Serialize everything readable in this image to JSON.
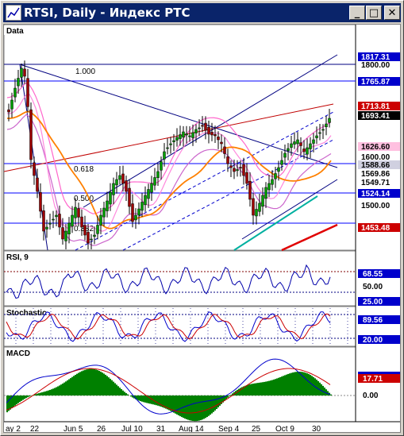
{
  "window": {
    "title": "RTSI, Daily - Индекс РТС",
    "minimize_glyph": "_",
    "maximize_glyph": "□",
    "close_glyph": "✕",
    "icon": "chart-window-icon"
  },
  "panes": {
    "main": {
      "label": "Data",
      "fib_labels": [
        "1.000",
        "0.618",
        "0.500",
        "0.382"
      ],
      "price_ticks": [
        "1817.31",
        "1800.00",
        "1765.87",
        "1713.81",
        "1693.41",
        "1626.60",
        "1600.00",
        "1588.66",
        "1569.86",
        "1549.71",
        "1524.14",
        "1500.00",
        "1453.48"
      ]
    },
    "rsi": {
      "label": "RSI, 9",
      "ticks": [
        "68.55",
        "50.00",
        "25.00"
      ]
    },
    "stochastic": {
      "label": "Stochastic",
      "ticks": [
        "89.56",
        "20.00"
      ]
    },
    "macd": {
      "label": "MACD",
      "ticks": [
        "17.71",
        "0.00"
      ]
    }
  },
  "time_axis": [
    "ay 2",
    "22",
    "Jun 5",
    "26",
    "Jul 10",
    "31",
    "Aug 14",
    "Sep 4",
    "25",
    "Oct 9",
    "30"
  ],
  "colors": {
    "title_bar": "#0a246a",
    "axis_label_bg": "#0000cc",
    "fib_label_bg": "#ff0000",
    "up_candle": "#00a000",
    "down_candle": "#a00000"
  }
}
